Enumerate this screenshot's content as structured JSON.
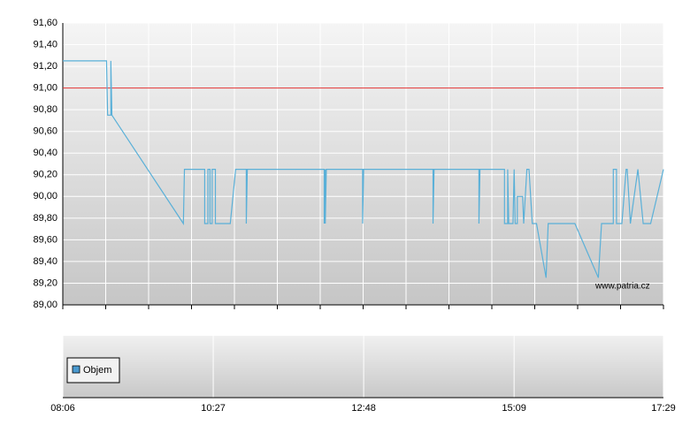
{
  "chart_data": {
    "type": "line",
    "watermark": "www.patria.cz",
    "volume_legend": "Objem",
    "volume_color": "#4a9ad0",
    "reference": 91.0,
    "reference_color": "#e03030",
    "xlim": [
      "08:06",
      "17:29"
    ],
    "xticks": [
      "08:06",
      "10:27",
      "12:48",
      "15:09",
      "17:29"
    ],
    "ylim": [
      89.0,
      91.6
    ],
    "yticks": [
      {
        "value": 89.0,
        "label": "89,00"
      },
      {
        "value": 89.2,
        "label": "89,20"
      },
      {
        "value": 89.4,
        "label": "89,40"
      },
      {
        "value": 89.6,
        "label": "89,60"
      },
      {
        "value": 89.8,
        "label": "89,80"
      },
      {
        "value": 90.0,
        "label": "90,00"
      },
      {
        "value": 90.2,
        "label": "90,20"
      },
      {
        "value": 90.4,
        "label": "90,40"
      },
      {
        "value": 90.6,
        "label": "90,60"
      },
      {
        "value": 90.8,
        "label": "90,80"
      },
      {
        "value": 91.0,
        "label": "91,00"
      },
      {
        "value": 91.2,
        "label": "91,20"
      },
      {
        "value": 91.4,
        "label": "91,40"
      },
      {
        "value": 91.6,
        "label": "91,60"
      }
    ],
    "grid": true,
    "color": "#5ab0d8",
    "x": [
      "08:06",
      "08:47",
      "08:48",
      "08:51",
      "08:51",
      "08:52",
      "09:59",
      "10:00",
      "10:19",
      "10:19",
      "10:22",
      "10:22",
      "10:24",
      "10:24",
      "10:26",
      "10:26",
      "10:29",
      "10:29",
      "10:43",
      "10:48",
      "10:58",
      "10:58",
      "10:59",
      "12:11",
      "12:11",
      "12:12",
      "12:12",
      "12:13",
      "12:47",
      "12:47",
      "12:48",
      "13:53",
      "13:53",
      "13:54",
      "14:36",
      "14:36",
      "14:37",
      "15:00",
      "15:00",
      "15:03",
      "15:03",
      "15:04",
      "15:08",
      "15:09",
      "15:10",
      "15:12",
      "15:12",
      "15:17",
      "15:18",
      "15:21",
      "15:23",
      "15:26",
      "15:30",
      "15:39",
      "15:41",
      "16:06",
      "16:28",
      "16:31",
      "16:42",
      "16:42",
      "16:45",
      "16:45",
      "16:50",
      "16:54",
      "16:55",
      "16:58",
      "17:05",
      "17:10",
      "17:17",
      "17:29"
    ],
    "values": [
      91.25,
      91.25,
      90.75,
      90.75,
      91.25,
      90.75,
      89.75,
      90.25,
      90.25,
      89.75,
      89.75,
      90.25,
      90.25,
      89.75,
      89.75,
      90.25,
      90.25,
      89.75,
      89.75,
      90.25,
      90.25,
      89.75,
      90.25,
      90.25,
      89.75,
      90.25,
      89.75,
      90.25,
      90.25,
      89.75,
      90.25,
      90.25,
      89.75,
      90.25,
      90.25,
      89.75,
      90.25,
      90.25,
      89.75,
      89.75,
      90.25,
      89.75,
      89.75,
      90.25,
      89.75,
      89.75,
      90.0,
      90.0,
      89.75,
      90.25,
      90.25,
      89.75,
      89.75,
      89.25,
      89.75,
      89.75,
      89.25,
      89.75,
      89.75,
      90.25,
      90.25,
      89.75,
      89.75,
      90.25,
      90.25,
      89.75,
      90.25,
      89.75,
      89.75,
      90.25
    ]
  }
}
